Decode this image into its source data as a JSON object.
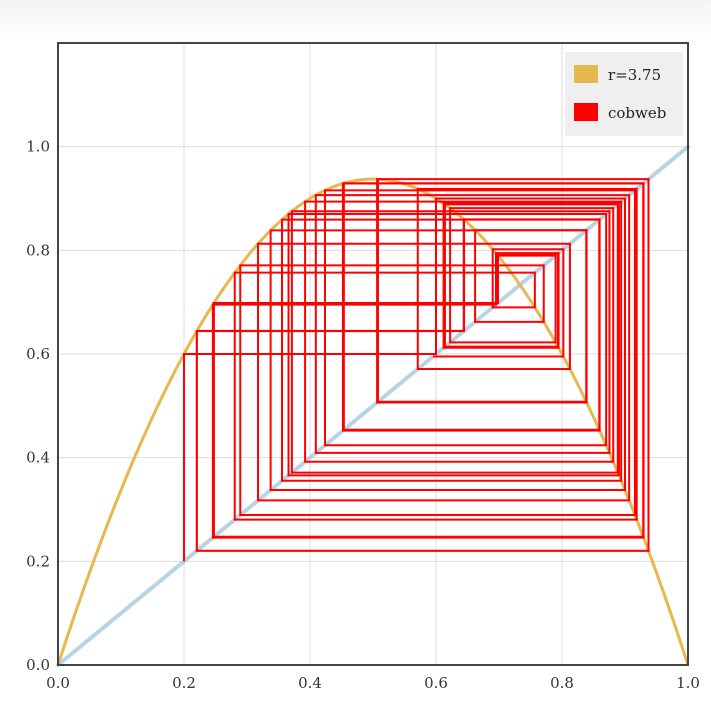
{
  "chart_data": {
    "type": "line",
    "title": "",
    "xlabel": "",
    "ylabel": "",
    "xlim": [
      0,
      1
    ],
    "ylim": [
      0,
      1.2
    ],
    "x_ticks": [
      "0.0",
      "0.2",
      "0.4",
      "0.6",
      "0.8",
      "1.0"
    ],
    "y_ticks": [
      "0.0",
      "0.2",
      "0.4",
      "0.6",
      "0.8",
      "1.0"
    ],
    "grid": true,
    "legend_position": "top-right",
    "series": [
      {
        "name": "r=3.75",
        "kind": "logistic-map-curve",
        "r": 3.75,
        "color": "#e5b94e"
      },
      {
        "name": "",
        "kind": "identity-line",
        "color": "#b9d3e6"
      },
      {
        "name": "cobweb",
        "kind": "cobweb",
        "r": 3.75,
        "x0": 0.2,
        "iterations": 60,
        "color": "#ff0000"
      }
    ]
  }
}
